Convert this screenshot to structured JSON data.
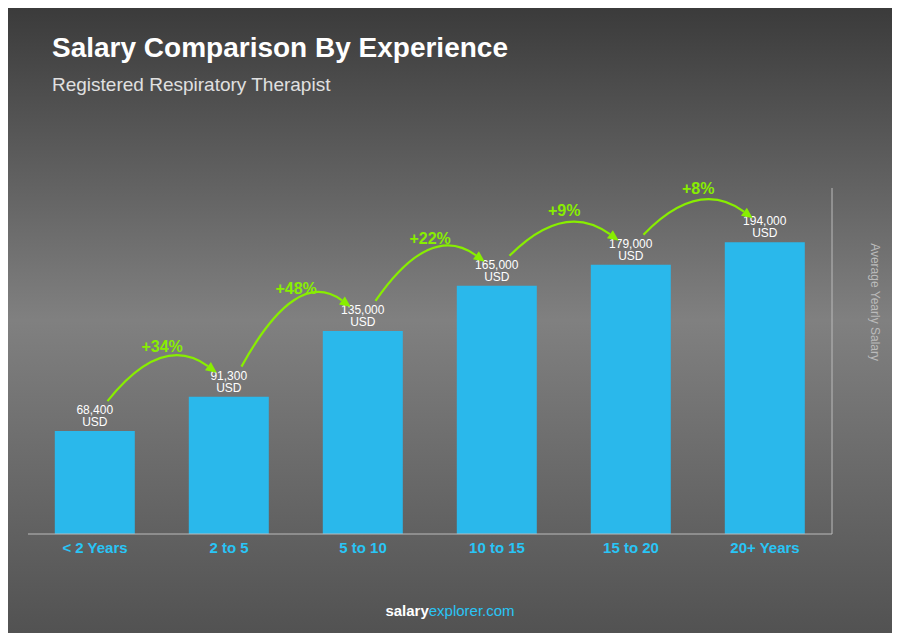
{
  "chart_data": {
    "type": "bar",
    "title": "Salary Comparison By Experience",
    "subtitle": "Registered Respiratory Therapist",
    "y_label": "Average Yearly Salary",
    "categories": [
      "< 2 Years",
      "2 to 5",
      "5 to 10",
      "10 to 15",
      "15 to 20",
      "20+ Years"
    ],
    "values": [
      68400,
      91300,
      135000,
      165000,
      179000,
      194000
    ],
    "value_labels": [
      "68,400 USD",
      "91,300 USD",
      "135,000 USD",
      "165,000 USD",
      "179,000 USD",
      "194,000 USD"
    ],
    "data_labels": true,
    "annotations": [
      "+34%",
      "+48%",
      "+22%",
      "+9%",
      "+8%"
    ],
    "footer": [
      "salary",
      "explorer.com"
    ],
    "color": "#2ab8eb",
    "ylim": [
      0,
      230000
    ],
    "grid": false,
    "tick_labels": "x"
  }
}
